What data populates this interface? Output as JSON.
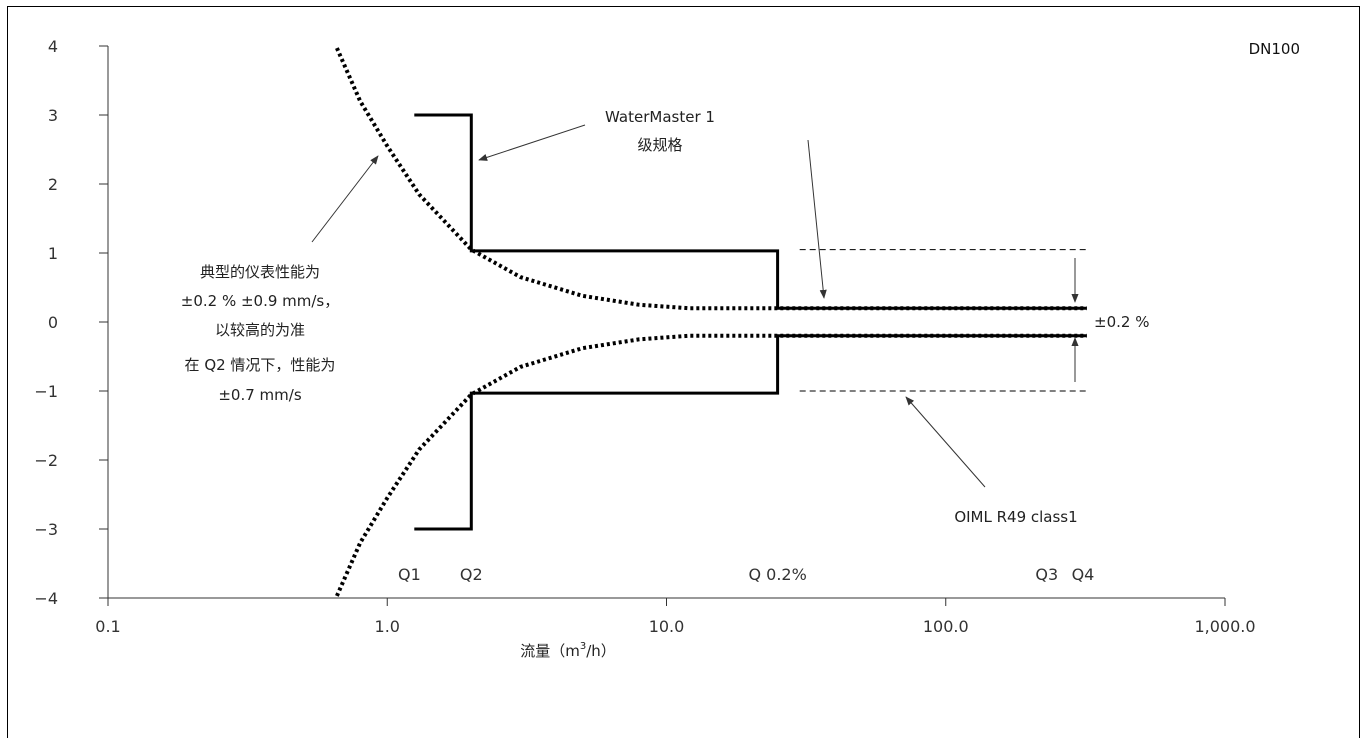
{
  "chart_data": {
    "type": "line",
    "title": "DN100",
    "xlabel": "流量（m³/h）",
    "xlabel_parts": [
      "流量（m",
      "3",
      "/h）"
    ],
    "ylabel": "",
    "x_scale": "log",
    "xlim": [
      0.1,
      1000
    ],
    "ylim": [
      -4,
      4
    ],
    "x_ticks": [
      0.1,
      1,
      10,
      100,
      1000
    ],
    "x_tick_labels": [
      "0.1",
      "1.0",
      "10.0",
      "100.0",
      "1,000.0"
    ],
    "y_ticks": [
      4,
      3,
      2,
      1,
      0,
      -1,
      -2,
      -3,
      -4
    ],
    "y_tick_labels": [
      "4",
      "3",
      "2",
      "1",
      "0",
      "−1",
      "−2",
      "−3",
      "−4"
    ],
    "series": [
      {
        "name": "WaterMaster 1 级规格",
        "style": "solid",
        "bound": "upper",
        "x": [
          1.25,
          2.0,
          2.0,
          25,
          25,
          320
        ],
        "y": [
          3,
          3,
          1.03,
          1.03,
          0.2,
          0.2
        ]
      },
      {
        "name": "WaterMaster 1 级规格",
        "style": "solid",
        "bound": "lower",
        "x": [
          1.25,
          2.0,
          2.0,
          25,
          25,
          320
        ],
        "y": [
          -3,
          -3,
          -1.03,
          -1.03,
          -0.2,
          -0.2
        ]
      },
      {
        "name": "典型的仪表性能",
        "style": "dotted",
        "bound": "upper",
        "x": [
          0.66,
          0.8,
          1.0,
          1.3,
          2.0,
          3.0,
          5.0,
          8.0,
          12,
          20,
          40,
          100,
          320
        ],
        "y": [
          3.97,
          3.2,
          2.55,
          1.85,
          1.05,
          0.65,
          0.38,
          0.25,
          0.2,
          0.2,
          0.2,
          0.2,
          0.2
        ]
      },
      {
        "name": "典型的仪表性能",
        "style": "dotted",
        "bound": "lower",
        "x": [
          0.66,
          0.8,
          1.0,
          1.3,
          2.0,
          3.0,
          5.0,
          8.0,
          12,
          20,
          40,
          100,
          320
        ],
        "y": [
          -3.97,
          -3.2,
          -2.55,
          -1.85,
          -1.05,
          -0.65,
          -0.38,
          -0.25,
          -0.2,
          -0.2,
          -0.2,
          -0.2,
          -0.2
        ]
      },
      {
        "name": "OIML R49 class1",
        "style": "dashed",
        "bound": "upper",
        "x": [
          30,
          320
        ],
        "y": [
          1.05,
          1.05
        ]
      },
      {
        "name": "OIML R49 class1",
        "style": "dashed",
        "bound": "lower",
        "x": [
          30,
          320
        ],
        "y": [
          -1.0,
          -1.0
        ]
      }
    ],
    "markers": [
      {
        "label": "Q1",
        "x": 1.2
      },
      {
        "label": "Q2",
        "x": 2.0
      },
      {
        "label": "Q 0.2%",
        "x": 25
      },
      {
        "label": "Q3",
        "x": 230
      },
      {
        "label": "Q4",
        "x": 310
      }
    ],
    "annotations": {
      "watermaster": [
        "WaterMaster 1",
        "级规格"
      ],
      "typical": [
        "典型的仪表性能为",
        "±0.2 % ±0.9 mm/s，",
        "以较高的为准",
        "在 Q2 情况下，性能为",
        "±0.7 mm/s"
      ],
      "oiml": "OIML R49 class1",
      "band": "±0.2 %"
    },
    "grid": false,
    "legend": "none"
  }
}
